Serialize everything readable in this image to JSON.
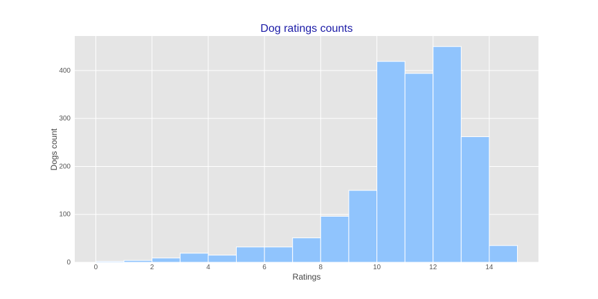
{
  "chart_data": {
    "type": "bar",
    "title": "Dog ratings counts",
    "xlabel": "Ratings",
    "ylabel": "Dogs count",
    "bins": [
      {
        "start": 0,
        "end": 1,
        "value": 2
      },
      {
        "start": 1,
        "end": 2,
        "value": 4
      },
      {
        "start": 2,
        "end": 3,
        "value": 9
      },
      {
        "start": 3,
        "end": 4,
        "value": 19
      },
      {
        "start": 4,
        "end": 5,
        "value": 15
      },
      {
        "start": 5,
        "end": 6,
        "value": 32
      },
      {
        "start": 6,
        "end": 7,
        "value": 32
      },
      {
        "start": 7,
        "end": 8,
        "value": 51
      },
      {
        "start": 8,
        "end": 9,
        "value": 96
      },
      {
        "start": 9,
        "end": 10,
        "value": 150
      },
      {
        "start": 10,
        "end": 11,
        "value": 419
      },
      {
        "start": 11,
        "end": 12,
        "value": 394
      },
      {
        "start": 12,
        "end": 13,
        "value": 450
      },
      {
        "start": 13,
        "end": 14,
        "value": 262
      },
      {
        "start": 14,
        "end": 15,
        "value": 35
      }
    ],
    "xlim": [
      -0.75,
      15.75
    ],
    "ylim": [
      0,
      472
    ],
    "xticks": [
      0,
      2,
      4,
      6,
      8,
      10,
      12,
      14
    ],
    "yticks": [
      0,
      100,
      200,
      300,
      400
    ],
    "grid": true,
    "colors": {
      "bar": "#90c4fd",
      "plot_background": "#e5e5e5",
      "grid": "#ffffff",
      "title": "#1a1aa6"
    }
  }
}
